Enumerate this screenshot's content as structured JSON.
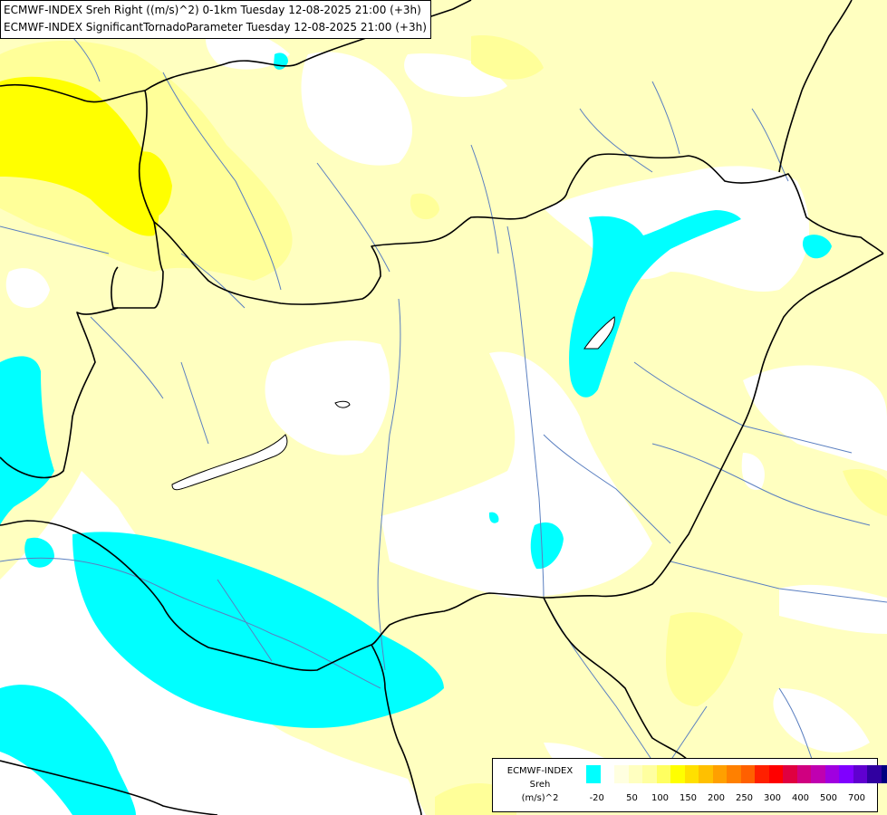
{
  "title": {
    "line1": "ECMWF-INDEX Sreh Right ((m/s)^2) 0-1km Tuesday 12-08-2025 21:00 (+3h)",
    "line2": "ECMWF-INDEX SignificantTornadoParameter Tuesday 12-08-2025 21:00 (+3h)"
  },
  "legend": {
    "model": "ECMWF-INDEX",
    "parameter": "Sreh",
    "unit": "(m/s)^2",
    "colors": [
      "#00ffff",
      "#ffffff",
      "#ffffe0",
      "#ffffc0",
      "#ffffa0",
      "#ffff60",
      "#ffff00",
      "#ffe000",
      "#ffc000",
      "#ffa000",
      "#ff8000",
      "#ff6000",
      "#ff2000",
      "#ff0000",
      "#e00040",
      "#d00080",
      "#c000b0",
      "#a000e0",
      "#8000ff",
      "#6000d0",
      "#3000a0",
      "#000080"
    ],
    "ticks": [
      "-20",
      "50",
      "100",
      "150",
      "200",
      "250",
      "300",
      "400",
      "500",
      "700"
    ]
  },
  "colors": {
    "cyan_negative": "#00ffff",
    "neutral": "#ffffff",
    "pale_yellow": "#ffffc0",
    "light_yellow": "#ffff99",
    "yellow": "#ffff00",
    "border": "#000000",
    "rivers": "#5a7fc0"
  }
}
